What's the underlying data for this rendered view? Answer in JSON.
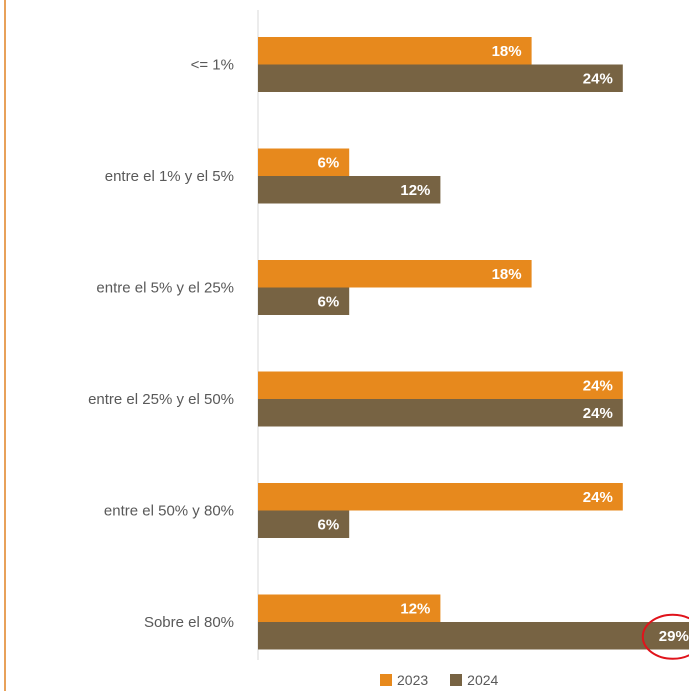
{
  "chart_data": {
    "type": "bar",
    "orientation": "horizontal",
    "categories": [
      "<= 1%",
      "entre el 1% y el 5%",
      "entre el 5% y el 25%",
      "entre el 25% y el 50%",
      "entre el 50% y 80%",
      "Sobre el 80%"
    ],
    "series": [
      {
        "name": "2023",
        "values": [
          18,
          6,
          18,
          24,
          24,
          12
        ],
        "labels": [
          "18%",
          "6%",
          "18%",
          "24%",
          "24%",
          "12%"
        ],
        "color": "#e7891d"
      },
      {
        "name": "2024",
        "values": [
          24,
          12,
          6,
          24,
          6,
          29
        ],
        "labels": [
          "24%",
          "12%",
          "6%",
          "24%",
          "6%",
          "29%"
        ],
        "color": "#776343"
      }
    ],
    "xlim": [
      0,
      29
    ],
    "grid": false,
    "legend_position": "bottom-right",
    "highlight": {
      "series": "2024",
      "category": "Sobre el 80%",
      "color": "#e0131b"
    }
  }
}
